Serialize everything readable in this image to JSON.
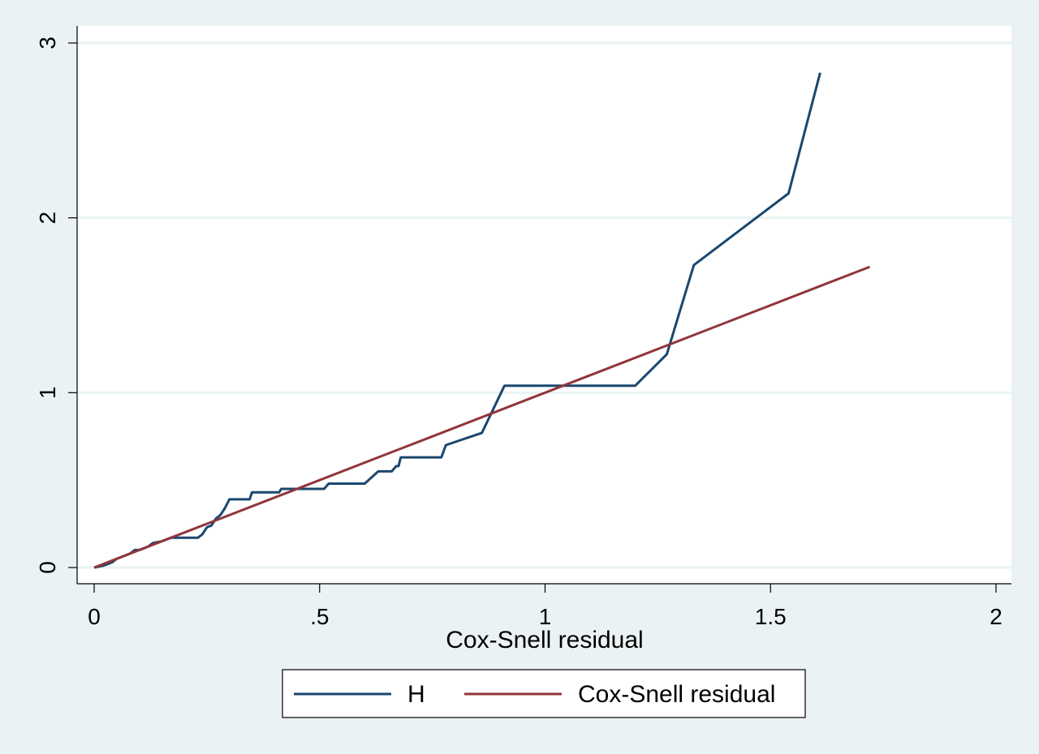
{
  "chart_data": {
    "type": "line",
    "xlabel": "Cox-Snell residual",
    "ylabel": "",
    "title": "",
    "xlim": [
      0,
      2
    ],
    "ylim": [
      0,
      3
    ],
    "x_ticks": [
      0,
      0.5,
      1,
      1.5,
      2
    ],
    "x_tick_labels": [
      "0",
      ".5",
      "1",
      "1.5",
      "2"
    ],
    "y_ticks": [
      0,
      1,
      2,
      3
    ],
    "y_tick_labels": [
      "0",
      "1",
      "2",
      "3"
    ],
    "grid": "horizontal",
    "legend_position": "bottom",
    "series": [
      {
        "name": "H",
        "color": "#1a476f",
        "points": [
          [
            0.0,
            0.0
          ],
          [
            0.02,
            0.01
          ],
          [
            0.03,
            0.02
          ],
          [
            0.04,
            0.03
          ],
          [
            0.05,
            0.05
          ],
          [
            0.06,
            0.06
          ],
          [
            0.07,
            0.07
          ],
          [
            0.08,
            0.08
          ],
          [
            0.09,
            0.1
          ],
          [
            0.1,
            0.1
          ],
          [
            0.11,
            0.11
          ],
          [
            0.12,
            0.12
          ],
          [
            0.13,
            0.14
          ],
          [
            0.15,
            0.15
          ],
          [
            0.17,
            0.17
          ],
          [
            0.23,
            0.17
          ],
          [
            0.24,
            0.19
          ],
          [
            0.25,
            0.23
          ],
          [
            0.26,
            0.24
          ],
          [
            0.27,
            0.28
          ],
          [
            0.28,
            0.3
          ],
          [
            0.29,
            0.34
          ],
          [
            0.3,
            0.39
          ],
          [
            0.345,
            0.39
          ],
          [
            0.35,
            0.43
          ],
          [
            0.41,
            0.43
          ],
          [
            0.415,
            0.45
          ],
          [
            0.51,
            0.45
          ],
          [
            0.52,
            0.48
          ],
          [
            0.6,
            0.48
          ],
          [
            0.63,
            0.55
          ],
          [
            0.66,
            0.55
          ],
          [
            0.67,
            0.58
          ],
          [
            0.675,
            0.58
          ],
          [
            0.68,
            0.63
          ],
          [
            0.77,
            0.63
          ],
          [
            0.78,
            0.7
          ],
          [
            0.86,
            0.77
          ],
          [
            0.91,
            1.04
          ],
          [
            1.2,
            1.04
          ],
          [
            1.27,
            1.22
          ],
          [
            1.33,
            1.73
          ],
          [
            1.54,
            2.14
          ],
          [
            1.61,
            2.83
          ]
        ]
      },
      {
        "name": "Cox-Snell residual",
        "color": "#90353b",
        "points": [
          [
            0.0,
            0.0
          ],
          [
            1.72,
            1.72
          ]
        ]
      }
    ]
  }
}
